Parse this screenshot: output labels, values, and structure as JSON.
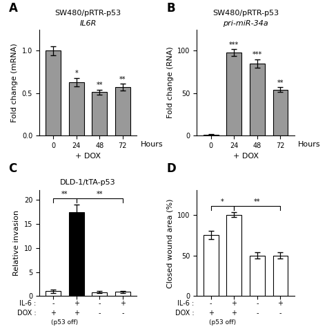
{
  "chart_data": [
    {
      "type": "bar",
      "panel": "A",
      "title": "SW480/pRTR-p53",
      "subtitle": "IL6R",
      "xlabel": "+ DOX",
      "ylabel": "Fold change (mRNA)",
      "categories": [
        "0",
        "24",
        "48",
        "72"
      ],
      "values": [
        1.0,
        0.63,
        0.51,
        0.57
      ],
      "errors": [
        0.05,
        0.05,
        0.03,
        0.04
      ],
      "color": "#999999",
      "edge_color": "#000000",
      "ylim": [
        0,
        1.25
      ],
      "yticks": [
        0.0,
        0.5,
        1.0
      ],
      "significance": [
        null,
        "*",
        "**",
        "**"
      ],
      "annotations": [
        {
          "text": "Hours"
        }
      ]
    },
    {
      "type": "bar",
      "panel": "B",
      "title": "SW480/pRTR-p53",
      "subtitle": "pri-miR-34a",
      "xlabel": "+ DOX",
      "ylabel": "Fold change (RNA)",
      "categories": [
        "0",
        "24",
        "48",
        "72"
      ],
      "values": [
        1.0,
        98.0,
        85.0,
        54.0
      ],
      "errors": [
        0.5,
        4.0,
        5.0,
        3.0
      ],
      "color": "#999999",
      "edge_color": "#000000",
      "ylim": [
        0,
        125
      ],
      "yticks": [
        0,
        50,
        100
      ],
      "significance": [
        null,
        "***",
        "***",
        "**"
      ],
      "annotations": [
        {
          "text": "Hours"
        }
      ]
    },
    {
      "type": "bar",
      "panel": "C",
      "title": "DLD-1/tTA-p53",
      "ylabel": "Relative invasion",
      "category_rows": [
        {
          "label": "IL-6 :",
          "values": [
            "-",
            "+",
            "-",
            "+"
          ]
        },
        {
          "label": "DOX :",
          "values": [
            "+",
            "+",
            "-",
            "-"
          ]
        }
      ],
      "values": [
        1.0,
        17.5,
        0.8,
        0.9
      ],
      "errors": [
        0.3,
        1.5,
        0.2,
        0.2
      ],
      "colors": [
        "#ffffff",
        "#000000",
        "#ffffff",
        "#ffffff"
      ],
      "edge_color": "#000000",
      "ylim": [
        0,
        22
      ],
      "yticks": [
        0,
        5,
        10,
        15,
        20
      ],
      "brackets": [
        {
          "from": 0,
          "to": 1,
          "text": "**"
        },
        {
          "from": 1,
          "to": 3,
          "text": "**"
        }
      ],
      "annotations": [
        {
          "text": "(p53 off)",
          "under": [
            0,
            1
          ]
        }
      ]
    },
    {
      "type": "bar",
      "panel": "D",
      "ylabel": "Closed wound area (%)",
      "category_rows": [
        {
          "label": "IL-6 :",
          "values": [
            "-",
            "+",
            "-",
            "+"
          ]
        },
        {
          "label": "DOX :",
          "values": [
            "+",
            "+",
            "-",
            "-"
          ]
        }
      ],
      "values": [
        75,
        100,
        50,
        50
      ],
      "errors": [
        5,
        3,
        4,
        4
      ],
      "colors": [
        "#ffffff",
        "#ffffff",
        "#ffffff",
        "#ffffff"
      ],
      "edge_color": "#000000",
      "ylim": [
        0,
        130
      ],
      "yticks": [
        0,
        50,
        100
      ],
      "brackets": [
        {
          "from": 0,
          "to": 1,
          "text": "*"
        },
        {
          "from": 1,
          "to": 3,
          "text": "**"
        }
      ],
      "annotations": [
        {
          "text": "(p53 off)",
          "under": [
            0,
            1
          ]
        }
      ]
    }
  ]
}
